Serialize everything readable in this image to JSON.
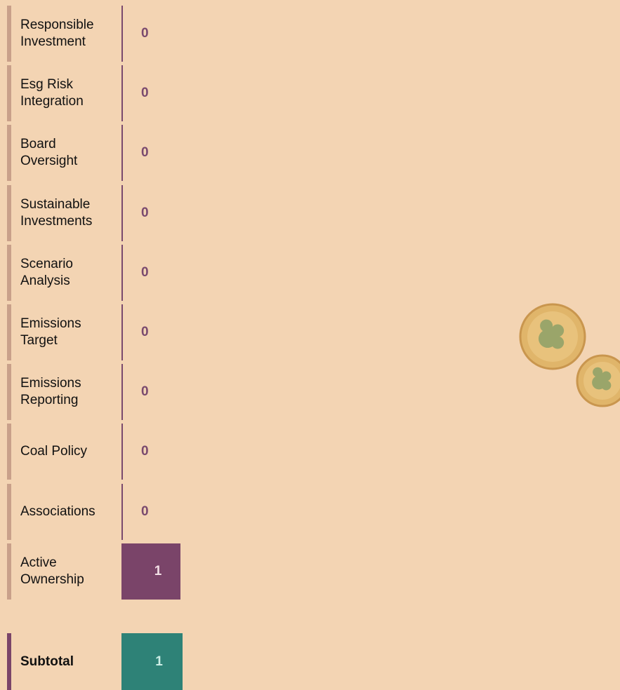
{
  "rows": [
    {
      "label": "Responsible Investment",
      "value": 0
    },
    {
      "label": "Esg Risk Integration",
      "value": 0
    },
    {
      "label": "Board Oversight",
      "value": 0
    },
    {
      "label": "Sustainable Investments",
      "value": 0
    },
    {
      "label": "Scenario Analysis",
      "value": 0
    },
    {
      "label": "Emissions Target",
      "value": 0
    },
    {
      "label": "Emissions Reporting",
      "value": 0
    },
    {
      "label": "Coal Policy",
      "value": 0
    },
    {
      "label": "Associations",
      "value": 0
    },
    {
      "label": "Active Ownership",
      "value": 1
    }
  ],
  "subtotal": {
    "label": "Subtotal",
    "value": 1
  }
}
